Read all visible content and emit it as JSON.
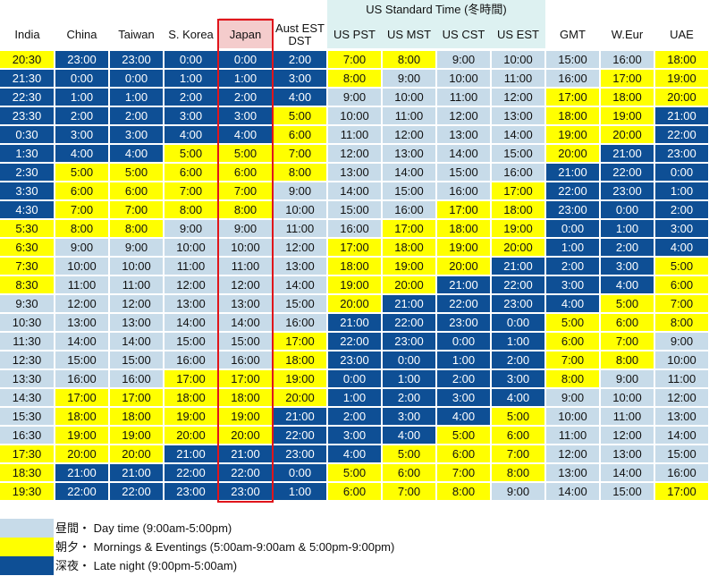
{
  "header": {
    "us_group_label": "US Standard Time (冬時間)",
    "columns": [
      "India",
      "China",
      "Taiwan",
      "S. Korea",
      "Japan",
      "Aust EST\nDST",
      "US PST",
      "US MST",
      "US CST",
      "US EST",
      "GMT",
      "W.Eur",
      "UAE"
    ]
  },
  "colors": {
    "day": "#c7dbe9",
    "morning_evening": "#ffff00",
    "night": "#0e4f95",
    "us_header": "#ddf1f1",
    "japan_header": "#f4cccc",
    "japan_outline": "#e0151b"
  },
  "rows": [
    [
      [
        "20:30",
        "m"
      ],
      [
        "23:00",
        "n"
      ],
      [
        "23:00",
        "n"
      ],
      [
        "0:00",
        "n"
      ],
      [
        "0:00",
        "n"
      ],
      [
        "2:00",
        "n"
      ],
      [
        "7:00",
        "m"
      ],
      [
        "8:00",
        "m"
      ],
      [
        "9:00",
        "d"
      ],
      [
        "10:00",
        "d"
      ],
      [
        "15:00",
        "d"
      ],
      [
        "16:00",
        "d"
      ],
      [
        "18:00",
        "m"
      ]
    ],
    [
      [
        "21:30",
        "n"
      ],
      [
        "0:00",
        "n"
      ],
      [
        "0:00",
        "n"
      ],
      [
        "1:00",
        "n"
      ],
      [
        "1:00",
        "n"
      ],
      [
        "3:00",
        "n"
      ],
      [
        "8:00",
        "m"
      ],
      [
        "9:00",
        "d"
      ],
      [
        "10:00",
        "d"
      ],
      [
        "11:00",
        "d"
      ],
      [
        "16:00",
        "d"
      ],
      [
        "17:00",
        "m"
      ],
      [
        "19:00",
        "m"
      ]
    ],
    [
      [
        "22:30",
        "n"
      ],
      [
        "1:00",
        "n"
      ],
      [
        "1:00",
        "n"
      ],
      [
        "2:00",
        "n"
      ],
      [
        "2:00",
        "n"
      ],
      [
        "4:00",
        "n"
      ],
      [
        "9:00",
        "d"
      ],
      [
        "10:00",
        "d"
      ],
      [
        "11:00",
        "d"
      ],
      [
        "12:00",
        "d"
      ],
      [
        "17:00",
        "m"
      ],
      [
        "18:00",
        "m"
      ],
      [
        "20:00",
        "m"
      ]
    ],
    [
      [
        "23:30",
        "n"
      ],
      [
        "2:00",
        "n"
      ],
      [
        "2:00",
        "n"
      ],
      [
        "3:00",
        "n"
      ],
      [
        "3:00",
        "n"
      ],
      [
        "5:00",
        "m"
      ],
      [
        "10:00",
        "d"
      ],
      [
        "11:00",
        "d"
      ],
      [
        "12:00",
        "d"
      ],
      [
        "13:00",
        "d"
      ],
      [
        "18:00",
        "m"
      ],
      [
        "19:00",
        "m"
      ],
      [
        "21:00",
        "n"
      ]
    ],
    [
      [
        "0:30",
        "n"
      ],
      [
        "3:00",
        "n"
      ],
      [
        "3:00",
        "n"
      ],
      [
        "4:00",
        "n"
      ],
      [
        "4:00",
        "n"
      ],
      [
        "6:00",
        "m"
      ],
      [
        "11:00",
        "d"
      ],
      [
        "12:00",
        "d"
      ],
      [
        "13:00",
        "d"
      ],
      [
        "14:00",
        "d"
      ],
      [
        "19:00",
        "m"
      ],
      [
        "20:00",
        "m"
      ],
      [
        "22:00",
        "n"
      ]
    ],
    [
      [
        "1:30",
        "n"
      ],
      [
        "4:00",
        "n"
      ],
      [
        "4:00",
        "n"
      ],
      [
        "5:00",
        "m"
      ],
      [
        "5:00",
        "m"
      ],
      [
        "7:00",
        "m"
      ],
      [
        "12:00",
        "d"
      ],
      [
        "13:00",
        "d"
      ],
      [
        "14:00",
        "d"
      ],
      [
        "15:00",
        "d"
      ],
      [
        "20:00",
        "m"
      ],
      [
        "21:00",
        "n"
      ],
      [
        "23:00",
        "n"
      ]
    ],
    [
      [
        "2:30",
        "n"
      ],
      [
        "5:00",
        "m"
      ],
      [
        "5:00",
        "m"
      ],
      [
        "6:00",
        "m"
      ],
      [
        "6:00",
        "m"
      ],
      [
        "8:00",
        "m"
      ],
      [
        "13:00",
        "d"
      ],
      [
        "14:00",
        "d"
      ],
      [
        "15:00",
        "d"
      ],
      [
        "16:00",
        "d"
      ],
      [
        "21:00",
        "n"
      ],
      [
        "22:00",
        "n"
      ],
      [
        "0:00",
        "n"
      ]
    ],
    [
      [
        "3:30",
        "n"
      ],
      [
        "6:00",
        "m"
      ],
      [
        "6:00",
        "m"
      ],
      [
        "7:00",
        "m"
      ],
      [
        "7:00",
        "m"
      ],
      [
        "9:00",
        "d"
      ],
      [
        "14:00",
        "d"
      ],
      [
        "15:00",
        "d"
      ],
      [
        "16:00",
        "d"
      ],
      [
        "17:00",
        "m"
      ],
      [
        "22:00",
        "n"
      ],
      [
        "23:00",
        "n"
      ],
      [
        "1:00",
        "n"
      ]
    ],
    [
      [
        "4:30",
        "n"
      ],
      [
        "7:00",
        "m"
      ],
      [
        "7:00",
        "m"
      ],
      [
        "8:00",
        "m"
      ],
      [
        "8:00",
        "m"
      ],
      [
        "10:00",
        "d"
      ],
      [
        "15:00",
        "d"
      ],
      [
        "16:00",
        "d"
      ],
      [
        "17:00",
        "m"
      ],
      [
        "18:00",
        "m"
      ],
      [
        "23:00",
        "n"
      ],
      [
        "0:00",
        "n"
      ],
      [
        "2:00",
        "n"
      ]
    ],
    [
      [
        "5:30",
        "m"
      ],
      [
        "8:00",
        "m"
      ],
      [
        "8:00",
        "m"
      ],
      [
        "9:00",
        "d"
      ],
      [
        "9:00",
        "d"
      ],
      [
        "11:00",
        "d"
      ],
      [
        "16:00",
        "d"
      ],
      [
        "17:00",
        "m"
      ],
      [
        "18:00",
        "m"
      ],
      [
        "19:00",
        "m"
      ],
      [
        "0:00",
        "n"
      ],
      [
        "1:00",
        "n"
      ],
      [
        "3:00",
        "n"
      ]
    ],
    [
      [
        "6:30",
        "m"
      ],
      [
        "9:00",
        "d"
      ],
      [
        "9:00",
        "d"
      ],
      [
        "10:00",
        "d"
      ],
      [
        "10:00",
        "d"
      ],
      [
        "12:00",
        "d"
      ],
      [
        "17:00",
        "m"
      ],
      [
        "18:00",
        "m"
      ],
      [
        "19:00",
        "m"
      ],
      [
        "20:00",
        "m"
      ],
      [
        "1:00",
        "n"
      ],
      [
        "2:00",
        "n"
      ],
      [
        "4:00",
        "n"
      ]
    ],
    [
      [
        "7:30",
        "m"
      ],
      [
        "10:00",
        "d"
      ],
      [
        "10:00",
        "d"
      ],
      [
        "11:00",
        "d"
      ],
      [
        "11:00",
        "d"
      ],
      [
        "13:00",
        "d"
      ],
      [
        "18:00",
        "m"
      ],
      [
        "19:00",
        "m"
      ],
      [
        "20:00",
        "m"
      ],
      [
        "21:00",
        "n"
      ],
      [
        "2:00",
        "n"
      ],
      [
        "3:00",
        "n"
      ],
      [
        "5:00",
        "m"
      ]
    ],
    [
      [
        "8:30",
        "m"
      ],
      [
        "11:00",
        "d"
      ],
      [
        "11:00",
        "d"
      ],
      [
        "12:00",
        "d"
      ],
      [
        "12:00",
        "d"
      ],
      [
        "14:00",
        "d"
      ],
      [
        "19:00",
        "m"
      ],
      [
        "20:00",
        "m"
      ],
      [
        "21:00",
        "n"
      ],
      [
        "22:00",
        "n"
      ],
      [
        "3:00",
        "n"
      ],
      [
        "4:00",
        "n"
      ],
      [
        "6:00",
        "m"
      ]
    ],
    [
      [
        "9:30",
        "d"
      ],
      [
        "12:00",
        "d"
      ],
      [
        "12:00",
        "d"
      ],
      [
        "13:00",
        "d"
      ],
      [
        "13:00",
        "d"
      ],
      [
        "15:00",
        "d"
      ],
      [
        "20:00",
        "m"
      ],
      [
        "21:00",
        "n"
      ],
      [
        "22:00",
        "n"
      ],
      [
        "23:00",
        "n"
      ],
      [
        "4:00",
        "n"
      ],
      [
        "5:00",
        "m"
      ],
      [
        "7:00",
        "m"
      ]
    ],
    [
      [
        "10:30",
        "d"
      ],
      [
        "13:00",
        "d"
      ],
      [
        "13:00",
        "d"
      ],
      [
        "14:00",
        "d"
      ],
      [
        "14:00",
        "d"
      ],
      [
        "16:00",
        "d"
      ],
      [
        "21:00",
        "n"
      ],
      [
        "22:00",
        "n"
      ],
      [
        "23:00",
        "n"
      ],
      [
        "0:00",
        "n"
      ],
      [
        "5:00",
        "m"
      ],
      [
        "6:00",
        "m"
      ],
      [
        "8:00",
        "m"
      ]
    ],
    [
      [
        "11:30",
        "d"
      ],
      [
        "14:00",
        "d"
      ],
      [
        "14:00",
        "d"
      ],
      [
        "15:00",
        "d"
      ],
      [
        "15:00",
        "d"
      ],
      [
        "17:00",
        "m"
      ],
      [
        "22:00",
        "n"
      ],
      [
        "23:00",
        "n"
      ],
      [
        "0:00",
        "n"
      ],
      [
        "1:00",
        "n"
      ],
      [
        "6:00",
        "m"
      ],
      [
        "7:00",
        "m"
      ],
      [
        "9:00",
        "d"
      ]
    ],
    [
      [
        "12:30",
        "d"
      ],
      [
        "15:00",
        "d"
      ],
      [
        "15:00",
        "d"
      ],
      [
        "16:00",
        "d"
      ],
      [
        "16:00",
        "d"
      ],
      [
        "18:00",
        "m"
      ],
      [
        "23:00",
        "n"
      ],
      [
        "0:00",
        "n"
      ],
      [
        "1:00",
        "n"
      ],
      [
        "2:00",
        "n"
      ],
      [
        "7:00",
        "m"
      ],
      [
        "8:00",
        "m"
      ],
      [
        "10:00",
        "d"
      ]
    ],
    [
      [
        "13:30",
        "d"
      ],
      [
        "16:00",
        "d"
      ],
      [
        "16:00",
        "d"
      ],
      [
        "17:00",
        "m"
      ],
      [
        "17:00",
        "m"
      ],
      [
        "19:00",
        "m"
      ],
      [
        "0:00",
        "n"
      ],
      [
        "1:00",
        "n"
      ],
      [
        "2:00",
        "n"
      ],
      [
        "3:00",
        "n"
      ],
      [
        "8:00",
        "m"
      ],
      [
        "9:00",
        "d"
      ],
      [
        "11:00",
        "d"
      ]
    ],
    [
      [
        "14:30",
        "d"
      ],
      [
        "17:00",
        "m"
      ],
      [
        "17:00",
        "m"
      ],
      [
        "18:00",
        "m"
      ],
      [
        "18:00",
        "m"
      ],
      [
        "20:00",
        "m"
      ],
      [
        "1:00",
        "n"
      ],
      [
        "2:00",
        "n"
      ],
      [
        "3:00",
        "n"
      ],
      [
        "4:00",
        "n"
      ],
      [
        "9:00",
        "d"
      ],
      [
        "10:00",
        "d"
      ],
      [
        "12:00",
        "d"
      ]
    ],
    [
      [
        "15:30",
        "d"
      ],
      [
        "18:00",
        "m"
      ],
      [
        "18:00",
        "m"
      ],
      [
        "19:00",
        "m"
      ],
      [
        "19:00",
        "m"
      ],
      [
        "21:00",
        "n"
      ],
      [
        "2:00",
        "n"
      ],
      [
        "3:00",
        "n"
      ],
      [
        "4:00",
        "n"
      ],
      [
        "5:00",
        "m"
      ],
      [
        "10:00",
        "d"
      ],
      [
        "11:00",
        "d"
      ],
      [
        "13:00",
        "d"
      ]
    ],
    [
      [
        "16:30",
        "d"
      ],
      [
        "19:00",
        "m"
      ],
      [
        "19:00",
        "m"
      ],
      [
        "20:00",
        "m"
      ],
      [
        "20:00",
        "m"
      ],
      [
        "22:00",
        "n"
      ],
      [
        "3:00",
        "n"
      ],
      [
        "4:00",
        "n"
      ],
      [
        "5:00",
        "m"
      ],
      [
        "6:00",
        "m"
      ],
      [
        "11:00",
        "d"
      ],
      [
        "12:00",
        "d"
      ],
      [
        "14:00",
        "d"
      ]
    ],
    [
      [
        "17:30",
        "m"
      ],
      [
        "20:00",
        "m"
      ],
      [
        "20:00",
        "m"
      ],
      [
        "21:00",
        "n"
      ],
      [
        "21:00",
        "n"
      ],
      [
        "23:00",
        "n"
      ],
      [
        "4:00",
        "n"
      ],
      [
        "5:00",
        "m"
      ],
      [
        "6:00",
        "m"
      ],
      [
        "7:00",
        "m"
      ],
      [
        "12:00",
        "d"
      ],
      [
        "13:00",
        "d"
      ],
      [
        "15:00",
        "d"
      ]
    ],
    [
      [
        "18:30",
        "m"
      ],
      [
        "21:00",
        "n"
      ],
      [
        "21:00",
        "n"
      ],
      [
        "22:00",
        "n"
      ],
      [
        "22:00",
        "n"
      ],
      [
        "0:00",
        "n"
      ],
      [
        "5:00",
        "m"
      ],
      [
        "6:00",
        "m"
      ],
      [
        "7:00",
        "m"
      ],
      [
        "8:00",
        "m"
      ],
      [
        "13:00",
        "d"
      ],
      [
        "14:00",
        "d"
      ],
      [
        "16:00",
        "d"
      ]
    ],
    [
      [
        "19:30",
        "m"
      ],
      [
        "22:00",
        "n"
      ],
      [
        "22:00",
        "n"
      ],
      [
        "23:00",
        "n"
      ],
      [
        "23:00",
        "n"
      ],
      [
        "1:00",
        "n"
      ],
      [
        "6:00",
        "m"
      ],
      [
        "7:00",
        "m"
      ],
      [
        "8:00",
        "m"
      ],
      [
        "9:00",
        "d"
      ],
      [
        "14:00",
        "d"
      ],
      [
        "15:00",
        "d"
      ],
      [
        "17:00",
        "m"
      ]
    ]
  ],
  "legend": [
    {
      "cls": "d",
      "text": "昼間・ Day time (9:00am-5:00pm)"
    },
    {
      "cls": "m",
      "text": "朝夕・ Mornings & Eventings (5:00am-9:00am & 5:00pm-9:00pm)"
    },
    {
      "cls": "n",
      "text": "深夜・ Late night (9:00pm-5:00am)"
    }
  ]
}
